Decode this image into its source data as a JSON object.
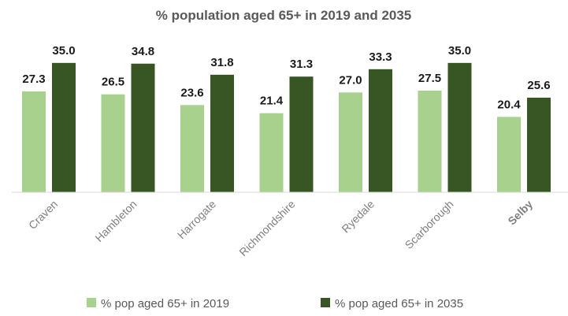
{
  "chart_data": {
    "type": "bar",
    "title": "% population aged 65+ in 2019 and 2035",
    "xlabel": "",
    "ylabel": "",
    "ylim": [
      0,
      40
    ],
    "grid": false,
    "legend_position": "bottom",
    "categories": [
      "Craven",
      "Hambleton",
      "Harrogate",
      "Richmondshire",
      "Ryedale",
      "Scarborough",
      "Selby"
    ],
    "highlight_category": "Selby",
    "highlight_color": "#e8231e",
    "series": [
      {
        "name": "% pop aged 65+ in 2019",
        "color": "#a9d18e",
        "values": [
          27.3,
          26.5,
          23.6,
          21.4,
          27.0,
          27.5,
          20.4
        ],
        "labels": [
          "27.3",
          "26.5",
          "23.6",
          "21.4",
          "27.0",
          "27.5",
          "20.4"
        ]
      },
      {
        "name": "% pop aged 65+ in 2035",
        "color": "#375623",
        "values": [
          35.0,
          34.8,
          31.8,
          31.3,
          33.3,
          35.0,
          25.6
        ],
        "labels": [
          "35.0",
          "34.8",
          "31.8",
          "31.3",
          "33.3",
          "35.0",
          "25.6"
        ]
      }
    ]
  }
}
